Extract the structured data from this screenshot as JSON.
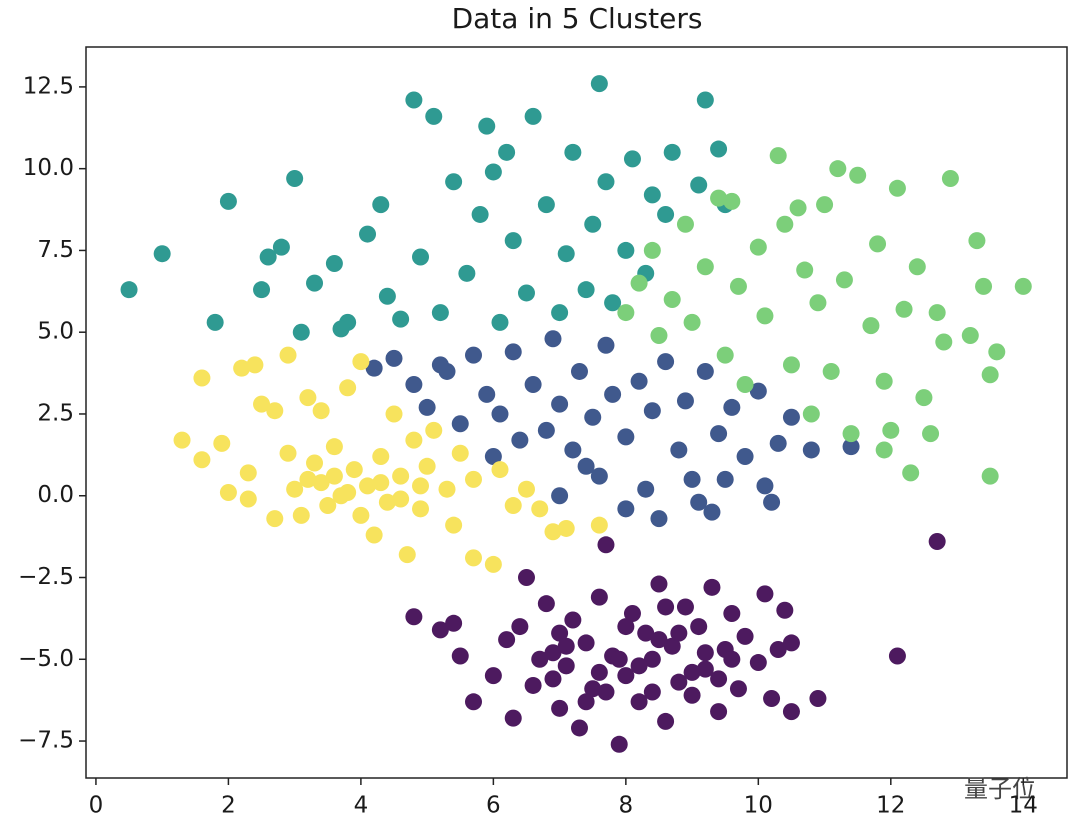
{
  "chart_data": {
    "type": "scatter",
    "title": "Data in 5 Clusters",
    "watermark": "量子位",
    "xlim": [
      -0.15,
      14.66
    ],
    "ylim": [
      -8.63,
      13.72
    ],
    "xticks": [
      0,
      2,
      4,
      6,
      8,
      10,
      12,
      14
    ],
    "yticks": [
      {
        "value": -7.5,
        "label": "−7.5"
      },
      {
        "value": -5,
        "label": "−5.0"
      },
      {
        "value": -2.5,
        "label": "−2.5"
      },
      {
        "value": 0,
        "label": "0.0"
      },
      2.5,
      {
        "value": 5,
        "label": "5.0"
      },
      7.5,
      {
        "value": 10,
        "label": "10.0"
      },
      12.5
    ],
    "grid": false,
    "series": [
      {
        "color": "#4d1a5f",
        "x": [
          4.8,
          5.2,
          5.5,
          5.7,
          6.0,
          6.2,
          6.3,
          6.5,
          6.6,
          6.8,
          6.9,
          7.0,
          7.1,
          7.2,
          7.3,
          7.4,
          7.5,
          7.6,
          7.7,
          7.8,
          7.9,
          8.0,
          8.1,
          8.2,
          8.3,
          8.4,
          8.5,
          8.6,
          8.7,
          8.8,
          8.9,
          9.0,
          9.1,
          9.2,
          9.3,
          9.4,
          9.5,
          9.6,
          9.7,
          9.8,
          10.0,
          10.1,
          10.2,
          10.4,
          10.5,
          10.5,
          10.9,
          12.1,
          12.7,
          6.4,
          7.0,
          7.6,
          8.0,
          8.4,
          8.8,
          9.2,
          9.6,
          6.9,
          7.4,
          8.6,
          5.4,
          10.3,
          7.9,
          8.2,
          7.1,
          9.0,
          6.7,
          8.5,
          9.4,
          7.7
        ],
        "y": [
          -3.7,
          -4.1,
          -4.9,
          -6.3,
          -5.5,
          -4.4,
          -6.8,
          -2.5,
          -5.8,
          -3.3,
          -4.8,
          -6.5,
          -5.2,
          -3.8,
          -7.1,
          -4.5,
          -5.9,
          -3.1,
          -1.5,
          -4.9,
          -7.6,
          -5.5,
          -3.6,
          -6.3,
          -4.2,
          -5.0,
          -2.7,
          -6.9,
          -4.6,
          -5.7,
          -3.4,
          -6.1,
          -4.0,
          -5.3,
          -2.8,
          -6.6,
          -4.7,
          -3.6,
          -5.9,
          -4.3,
          -5.1,
          -3.0,
          -6.2,
          -3.5,
          -6.6,
          -4.5,
          -6.2,
          -4.9,
          -1.4,
          -4.0,
          -4.2,
          -5.4,
          -4.0,
          -6.0,
          -4.2,
          -4.8,
          -5.0,
          -5.6,
          -6.3,
          -3.4,
          -3.9,
          -4.7,
          -5.0,
          -5.2,
          -4.6,
          -5.4,
          -5.0,
          -4.4,
          -5.6,
          -6.0
        ]
      },
      {
        "color": "#40598d",
        "x": [
          4.2,
          4.5,
          4.8,
          5.0,
          5.3,
          5.5,
          5.7,
          5.9,
          6.1,
          6.3,
          6.4,
          6.6,
          6.8,
          6.9,
          7.0,
          7.2,
          7.3,
          7.5,
          7.6,
          7.7,
          7.8,
          8.0,
          8.0,
          8.2,
          8.4,
          8.5,
          8.6,
          8.8,
          8.9,
          9.0,
          9.1,
          9.2,
          9.4,
          9.5,
          9.6,
          9.8,
          10.0,
          10.1,
          10.3,
          10.5,
          10.8,
          11.4,
          6.0,
          5.2,
          7.4,
          10.2,
          9.3,
          8.3,
          7.0
        ],
        "y": [
          3.9,
          4.2,
          3.4,
          2.7,
          3.8,
          2.2,
          4.3,
          3.1,
          2.5,
          4.4,
          1.7,
          3.4,
          2.0,
          4.8,
          2.8,
          1.4,
          3.8,
          2.4,
          0.6,
          4.6,
          3.1,
          1.8,
          -0.4,
          3.5,
          2.6,
          -0.7,
          4.1,
          1.4,
          2.9,
          0.5,
          -0.2,
          3.8,
          1.9,
          0.5,
          2.7,
          1.2,
          3.2,
          0.3,
          1.6,
          2.4,
          1.4,
          1.5,
          1.2,
          4.0,
          0.9,
          -0.2,
          -0.5,
          0.2,
          0.0
        ]
      },
      {
        "color": "#2f9a92",
        "x": [
          0.5,
          1.0,
          1.8,
          2.0,
          2.5,
          2.8,
          3.0,
          3.1,
          3.3,
          3.6,
          3.8,
          4.1,
          4.3,
          4.4,
          4.8,
          4.9,
          5.1,
          5.2,
          5.4,
          5.6,
          5.8,
          5.9,
          6.1,
          6.2,
          6.3,
          6.5,
          6.6,
          6.8,
          7.0,
          7.1,
          7.2,
          7.4,
          7.5,
          7.6,
          7.7,
          7.8,
          8.0,
          8.1,
          8.3,
          8.4,
          8.6,
          8.7,
          9.1,
          9.2,
          9.4,
          9.5,
          4.6,
          3.7,
          2.6,
          6.0
        ],
        "y": [
          6.3,
          7.4,
          5.3,
          9.0,
          6.3,
          7.6,
          9.7,
          5.0,
          6.5,
          7.1,
          5.3,
          8.0,
          8.9,
          6.1,
          12.1,
          7.3,
          11.6,
          5.6,
          9.6,
          6.8,
          8.6,
          11.3,
          5.3,
          10.5,
          7.8,
          6.2,
          11.6,
          8.9,
          5.6,
          7.4,
          10.5,
          6.3,
          8.3,
          12.6,
          9.6,
          5.9,
          7.5,
          10.3,
          6.8,
          9.2,
          8.6,
          10.5,
          9.5,
          12.1,
          10.6,
          8.9,
          5.4,
          5.1,
          7.3,
          9.9
        ]
      },
      {
        "color": "#7ccf7a",
        "x": [
          8.0,
          8.2,
          8.4,
          8.5,
          8.7,
          8.9,
          9.0,
          9.2,
          9.4,
          9.5,
          9.7,
          9.8,
          10.0,
          10.1,
          10.3,
          10.4,
          10.5,
          10.7,
          10.8,
          10.9,
          11.0,
          11.1,
          11.2,
          11.3,
          11.4,
          11.5,
          11.7,
          11.8,
          11.9,
          12.0,
          12.1,
          12.2,
          12.3,
          12.4,
          12.5,
          12.6,
          12.7,
          12.8,
          12.9,
          13.3,
          13.4,
          13.5,
          13.5,
          13.6,
          14.0,
          11.9,
          10.6,
          9.6,
          13.2
        ],
        "y": [
          5.6,
          6.5,
          7.5,
          4.9,
          6.0,
          8.3,
          5.3,
          7.0,
          9.1,
          4.3,
          6.4,
          3.4,
          7.6,
          5.5,
          10.4,
          8.3,
          4.0,
          6.9,
          2.5,
          5.9,
          8.9,
          3.8,
          10.0,
          6.6,
          1.9,
          9.8,
          5.2,
          7.7,
          3.5,
          2.0,
          9.4,
          5.7,
          0.7,
          7.0,
          3.0,
          1.9,
          5.6,
          4.7,
          9.7,
          7.8,
          6.4,
          3.7,
          0.6,
          4.4,
          6.4,
          1.4,
          8.8,
          9.0,
          4.9
        ]
      },
      {
        "color": "#f7e35d",
        "x": [
          1.3,
          1.6,
          1.6,
          1.9,
          2.2,
          2.3,
          2.3,
          2.4,
          2.5,
          2.7,
          2.7,
          2.9,
          2.9,
          3.0,
          3.1,
          3.2,
          3.3,
          3.4,
          3.5,
          3.6,
          3.7,
          3.8,
          3.9,
          4.0,
          4.0,
          4.1,
          4.2,
          4.3,
          4.4,
          4.5,
          4.6,
          4.7,
          4.8,
          4.9,
          5.0,
          5.1,
          5.3,
          5.4,
          5.5,
          5.7,
          5.7,
          6.0,
          6.1,
          6.3,
          6.5,
          6.7,
          6.9,
          7.1,
          7.6,
          3.4,
          2.0,
          3.6,
          4.3,
          3.8,
          4.6,
          3.2,
          4.9
        ],
        "y": [
          1.7,
          3.6,
          1.1,
          1.6,
          3.9,
          0.7,
          -0.1,
          4.0,
          2.8,
          -0.7,
          2.6,
          4.3,
          1.3,
          0.2,
          -0.6,
          3.0,
          1.0,
          0.4,
          -0.3,
          1.5,
          0.0,
          3.3,
          0.8,
          -0.6,
          4.1,
          0.3,
          -1.2,
          1.2,
          -0.2,
          2.5,
          0.6,
          -1.8,
          1.7,
          -0.4,
          0.9,
          2.0,
          0.2,
          -0.9,
          1.3,
          0.5,
          -1.9,
          -2.1,
          0.8,
          -0.3,
          0.2,
          -0.4,
          -1.1,
          -1.0,
          -0.9,
          2.6,
          0.1,
          0.6,
          0.4,
          0.1,
          -0.1,
          0.5,
          0.3
        ]
      }
    ]
  }
}
